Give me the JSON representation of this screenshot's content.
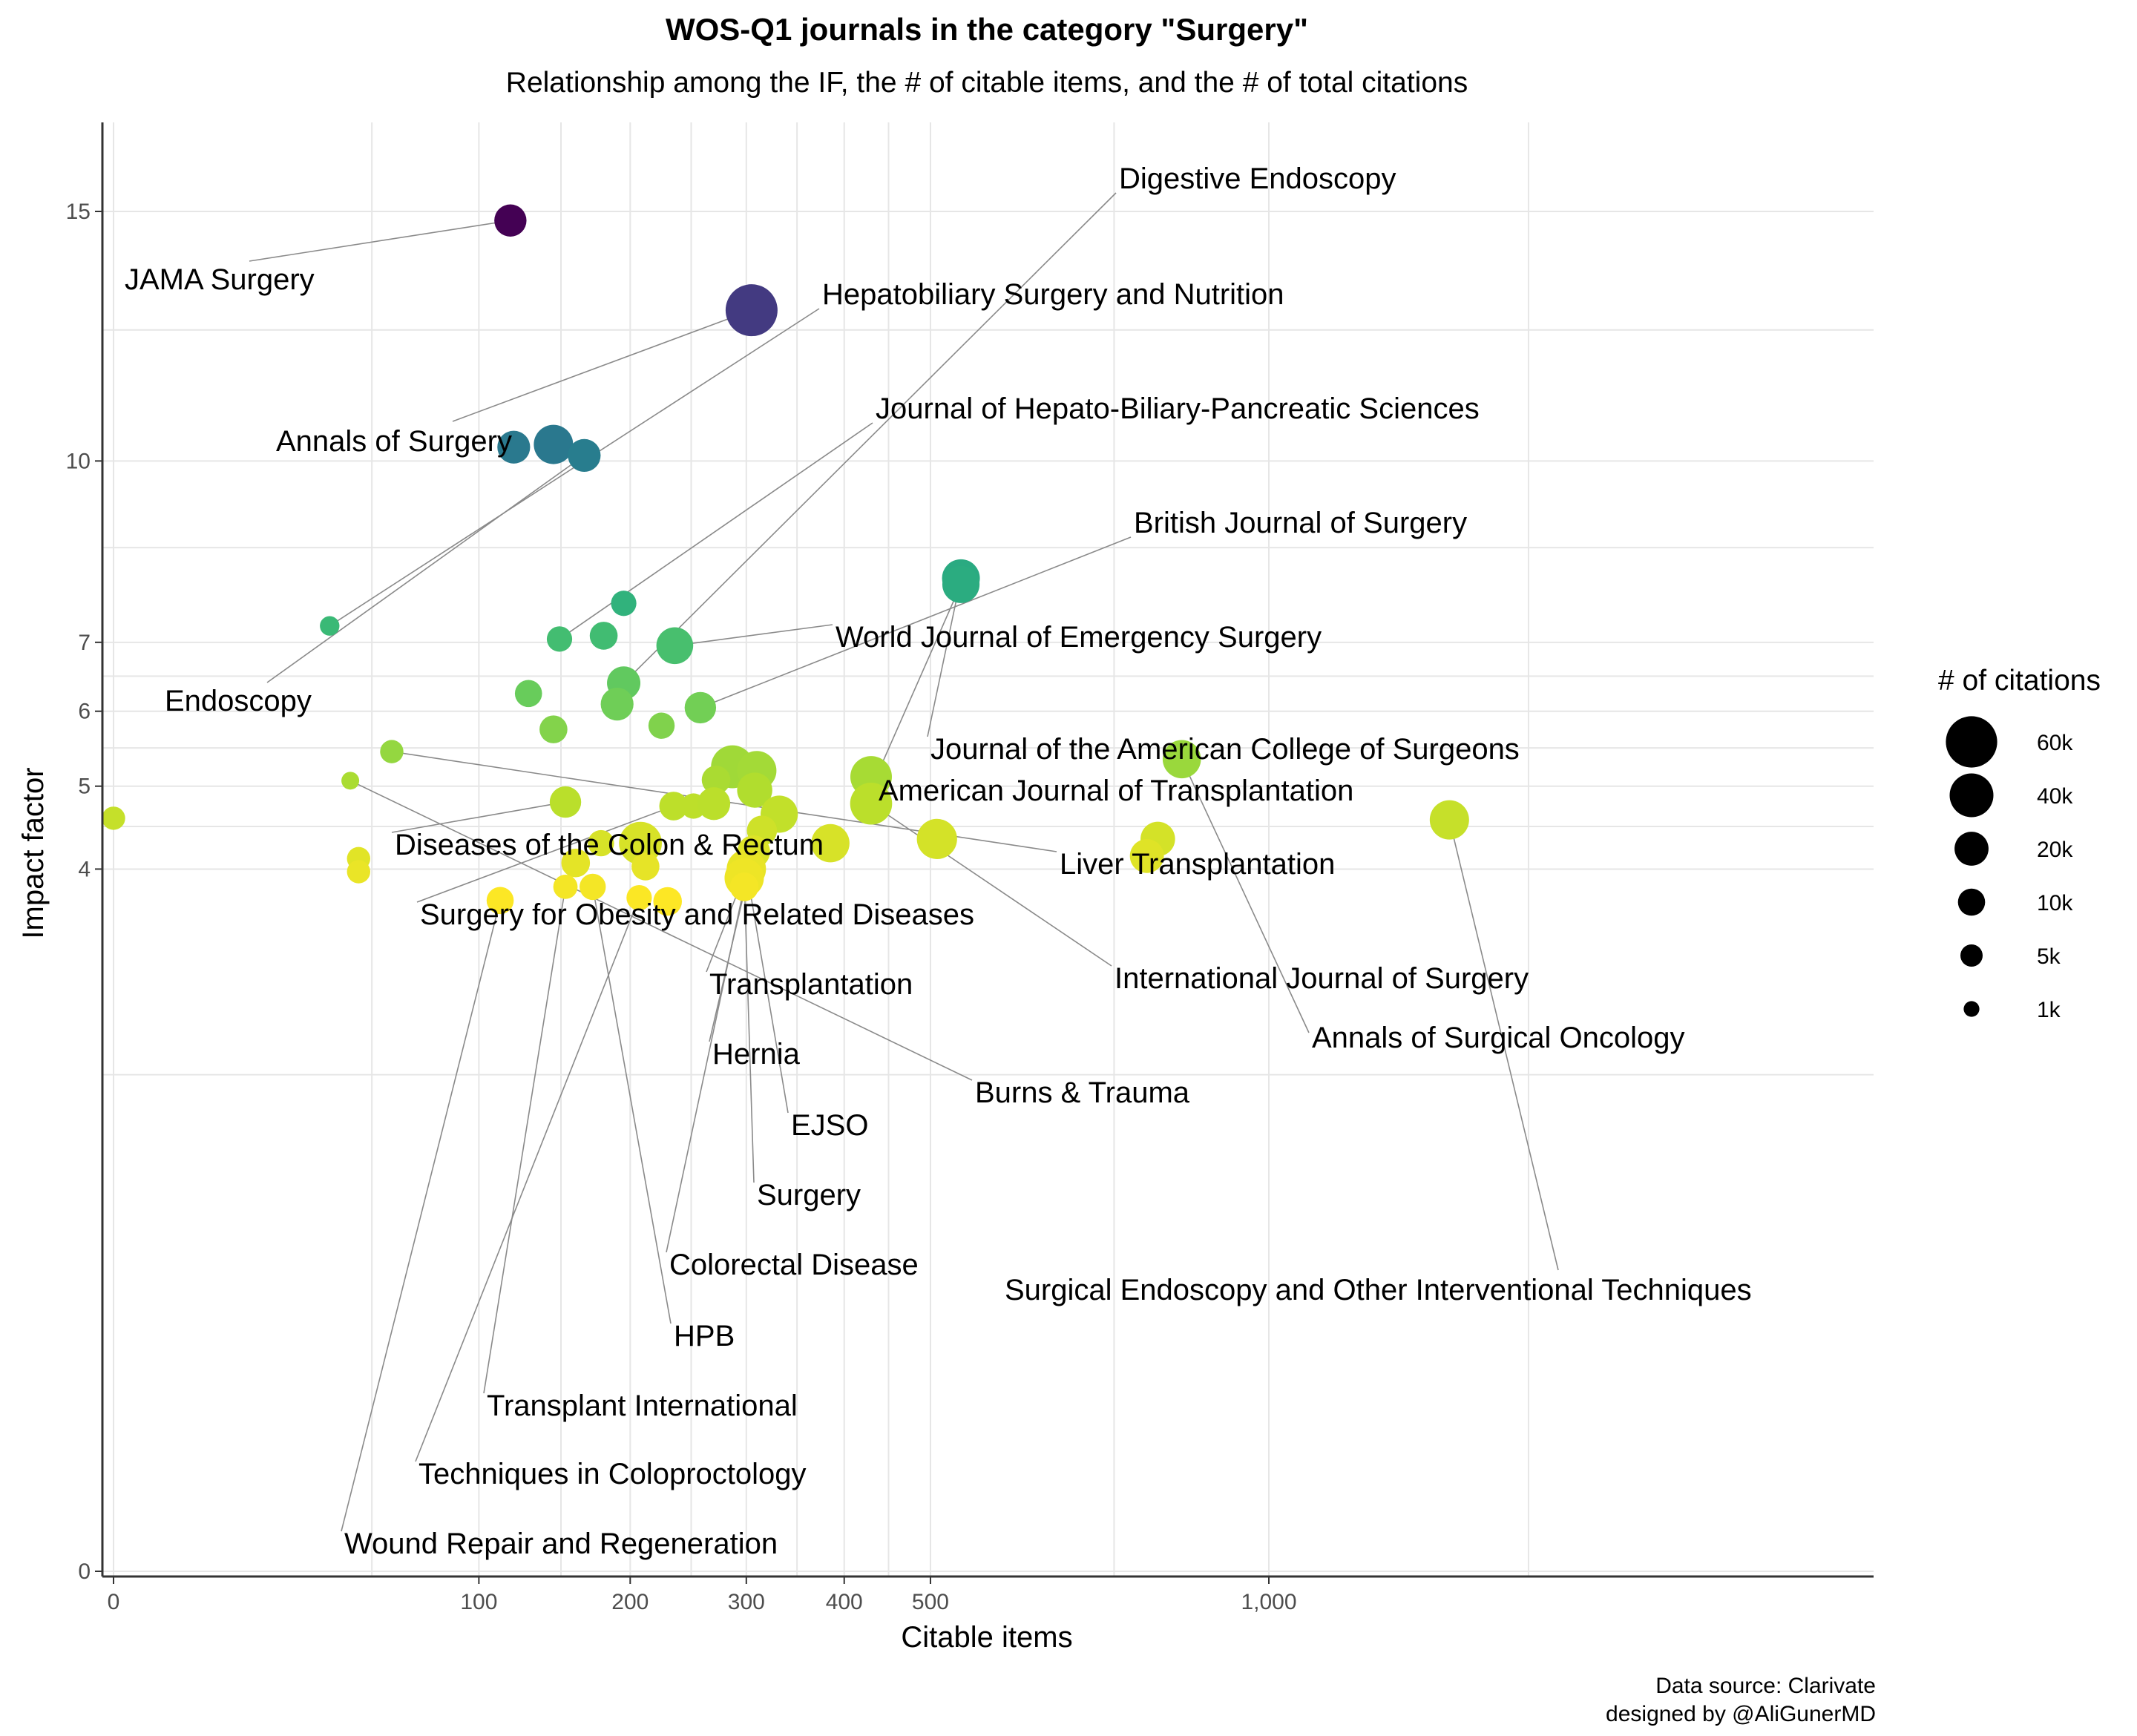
{
  "chart_data": {
    "type": "scatter",
    "title": "WOS-Q1 journals in the category \"Surgery\"",
    "subtitle": "Relationship among the IF, the # of citable items, and the # of total citations",
    "xlabel": "Citable items",
    "ylabel": "Impact factor",
    "x_scale": "sqrt",
    "y_scale": "sqrt",
    "xlim": [
      0,
      1600
    ],
    "ylim": [
      0,
      16
    ],
    "x_ticks": [
      {
        "value": 0,
        "label": "0"
      },
      {
        "value": 100,
        "label": "100"
      },
      {
        "value": 200,
        "label": "200"
      },
      {
        "value": 300,
        "label": "300"
      },
      {
        "value": 400,
        "label": "400"
      },
      {
        "value": 500,
        "label": "500"
      },
      {
        "value": 1000,
        "label": "1,000"
      }
    ],
    "y_ticks": [
      {
        "value": 0,
        "label": "0"
      },
      {
        "value": 4,
        "label": "4"
      },
      {
        "value": 5,
        "label": "5"
      },
      {
        "value": 6,
        "label": "6"
      },
      {
        "value": 7,
        "label": "7"
      },
      {
        "value": 10,
        "label": "10"
      },
      {
        "value": 15,
        "label": "15"
      }
    ],
    "grid": true,
    "color_scale": "viridis (by impact factor)",
    "legend": {
      "title": "# of citations",
      "placement": "right",
      "entries": [
        {
          "value": 60000,
          "label": "60k"
        },
        {
          "value": 40000,
          "label": "40k"
        },
        {
          "value": 20000,
          "label": "20k"
        },
        {
          "value": 10000,
          "label": "10k"
        },
        {
          "value": 5000,
          "label": "5k"
        },
        {
          "value": 1000,
          "label": "1k"
        }
      ]
    },
    "points": [
      {
        "name": "JAMA Surgery",
        "x": 118,
        "y": 14.8,
        "citations": 17000,
        "label": "JAMA Surgery"
      },
      {
        "name": "Annals of Surgery",
        "x": 305,
        "y": 12.9,
        "citations": 62000,
        "label": "Annals of Surgery"
      },
      {
        "name": "",
        "x": 120,
        "y": 10.25,
        "citations": 18000,
        "label": ""
      },
      {
        "name": "",
        "x": 145,
        "y": 10.3,
        "citations": 30000,
        "label": ""
      },
      {
        "name": "Endoscopy",
        "x": 166,
        "y": 10.1,
        "citations": 18000,
        "label": "Endoscopy"
      },
      {
        "name": "Journal of the American College of Surgeons",
        "x": 538,
        "y": 8.0,
        "citations": 27000,
        "label": "Journal of the American College of Surgeons"
      },
      {
        "name": "American Journal of Transplantation",
        "x": 538,
        "y": 7.9,
        "citations": 26000,
        "label": "American Journal of Transplantation"
      },
      {
        "name": "Hepatobiliary Surgery and Nutrition",
        "x": 35,
        "y": 7.25,
        "citations": 3000,
        "label": "Hepatobiliary Surgery and Nutrition"
      },
      {
        "name": "",
        "x": 195,
        "y": 7.6,
        "citations": 8000,
        "label": ""
      },
      {
        "name": "Journal of Hepato-Biliary-Pancreatic Sciences",
        "x": 149,
        "y": 7.05,
        "citations": 8000,
        "label": "Journal of Hepato-Biliary-Pancreatic Sciences"
      },
      {
        "name": "",
        "x": 180,
        "y": 7.1,
        "citations": 11000,
        "label": ""
      },
      {
        "name": "World Journal of Emergency Surgery",
        "x": 236,
        "y": 6.95,
        "citations": 25000,
        "label": "World Journal of Emergency Surgery"
      },
      {
        "name": "Digestive Endoscopy",
        "x": 195,
        "y": 6.4,
        "citations": 19000,
        "label": "Digestive Endoscopy"
      },
      {
        "name": "",
        "x": 129,
        "y": 6.25,
        "citations": 10000,
        "label": ""
      },
      {
        "name": "",
        "x": 190,
        "y": 6.1,
        "citations": 18000,
        "label": ""
      },
      {
        "name": "British Journal of Surgery",
        "x": 258,
        "y": 6.05,
        "citations": 16000,
        "label": "British Journal of Surgery"
      },
      {
        "name": "",
        "x": 145,
        "y": 5.75,
        "citations": 11000,
        "label": ""
      },
      {
        "name": "",
        "x": 225,
        "y": 5.8,
        "citations": 9000,
        "label": ""
      },
      {
        "name": "Liver Transplantation",
        "x": 58,
        "y": 5.45,
        "citations": 6000,
        "label": "Liver Transplantation"
      },
      {
        "name": "Annals of Surgical Oncology",
        "x": 855,
        "y": 5.35,
        "citations": 28000,
        "label": "Annals of Surgical Oncology"
      },
      {
        "name": "Burns & Trauma",
        "x": 42,
        "y": 5.07,
        "citations": 2000,
        "label": "Burns & Trauma"
      },
      {
        "name": "",
        "x": 287,
        "y": 5.25,
        "citations": 38000,
        "label": ""
      },
      {
        "name": "",
        "x": 310,
        "y": 5.2,
        "citations": 30000,
        "label": ""
      },
      {
        "name": "",
        "x": 272,
        "y": 5.08,
        "citations": 12000,
        "label": ""
      },
      {
        "name": "",
        "x": 430,
        "y": 5.12,
        "citations": 35000,
        "label": ""
      },
      {
        "name": "",
        "x": 308,
        "y": 4.95,
        "citations": 22000,
        "label": ""
      },
      {
        "name": "Diseases of the Colon & Rectum",
        "x": 153,
        "y": 4.8,
        "citations": 16000,
        "label": "Diseases of the Colon & Rectum"
      },
      {
        "name": "Surgery for Obesity and Related Diseases",
        "x": 235,
        "y": 4.75,
        "citations": 12000,
        "label": "Surgery for Obesity and Related Diseases"
      },
      {
        "name": "",
        "x": 252,
        "y": 4.75,
        "citations": 8000,
        "label": ""
      },
      {
        "name": "",
        "x": 270,
        "y": 4.78,
        "citations": 18000,
        "label": ""
      },
      {
        "name": "International Journal of Surgery",
        "x": 430,
        "y": 4.78,
        "citations": 36000,
        "label": "International Journal of Surgery"
      },
      {
        "name": "",
        "x": 332,
        "y": 4.65,
        "citations": 26000,
        "label": ""
      },
      {
        "name": "Transplantation",
        "x": 315,
        "y": 4.45,
        "citations": 14000,
        "label": "Transplantation"
      },
      {
        "name": "",
        "x": 0,
        "y": 4.6,
        "citations": 6000,
        "label": ""
      },
      {
        "name": "",
        "x": 208,
        "y": 4.3,
        "citations": 38000,
        "label": ""
      },
      {
        "name": "",
        "x": 178,
        "y": 4.3,
        "citations": 9000,
        "label": ""
      },
      {
        "name": "",
        "x": 385,
        "y": 4.3,
        "citations": 28000,
        "label": ""
      },
      {
        "name": "",
        "x": 508,
        "y": 4.35,
        "citations": 32000,
        "label": ""
      },
      {
        "name": "Surgical Endoscopy and Other Interventional Techniques",
        "x": 1337,
        "y": 4.58,
        "citations": 30000,
        "label": "Surgical Endoscopy and Other Interventional Techniques"
      },
      {
        "name": "",
        "x": 817,
        "y": 4.35,
        "citations": 21000,
        "label": ""
      },
      {
        "name": "",
        "x": 800,
        "y": 4.15,
        "citations": 20000,
        "label": ""
      },
      {
        "name": "Hernia",
        "x": 307,
        "y": 4.2,
        "citations": 18000,
        "label": "Hernia"
      },
      {
        "name": "",
        "x": 45,
        "y": 4.12,
        "citations": 6000,
        "label": ""
      },
      {
        "name": "",
        "x": 45,
        "y": 3.97,
        "citations": 6000,
        "label": ""
      },
      {
        "name": "",
        "x": 160,
        "y": 4.07,
        "citations": 12000,
        "label": ""
      },
      {
        "name": "",
        "x": 212,
        "y": 4.03,
        "citations": 11000,
        "label": ""
      },
      {
        "name": "EJSO",
        "x": 300,
        "y": 4.0,
        "citations": 30000,
        "label": "EJSO"
      },
      {
        "name": "Surgery",
        "x": 298,
        "y": 3.9,
        "citations": 30000,
        "label": "Surgery"
      },
      {
        "name": "Colorectal Disease",
        "x": 298,
        "y": 3.8,
        "citations": 12000,
        "label": "Colorectal Disease"
      },
      {
        "name": "HPB",
        "x": 172,
        "y": 3.8,
        "citations": 9000,
        "label": "HPB"
      },
      {
        "name": "Transplant International",
        "x": 153,
        "y": 3.8,
        "citations": 7000,
        "label": "Transplant International"
      },
      {
        "name": "Techniques in Coloproctology",
        "x": 207,
        "y": 3.68,
        "citations": 8000,
        "label": "Techniques in Coloproctology"
      },
      {
        "name": "",
        "x": 230,
        "y": 3.64,
        "citations": 12000,
        "label": ""
      },
      {
        "name": "Wound Repair and Regeneration",
        "x": 112,
        "y": 3.65,
        "citations": 10000,
        "label": "Wound Repair and Regeneration"
      }
    ],
    "annotations": [
      {
        "text": "Data source: Clarivate"
      },
      {
        "text": "designed by @AliGunerMD"
      }
    ]
  }
}
